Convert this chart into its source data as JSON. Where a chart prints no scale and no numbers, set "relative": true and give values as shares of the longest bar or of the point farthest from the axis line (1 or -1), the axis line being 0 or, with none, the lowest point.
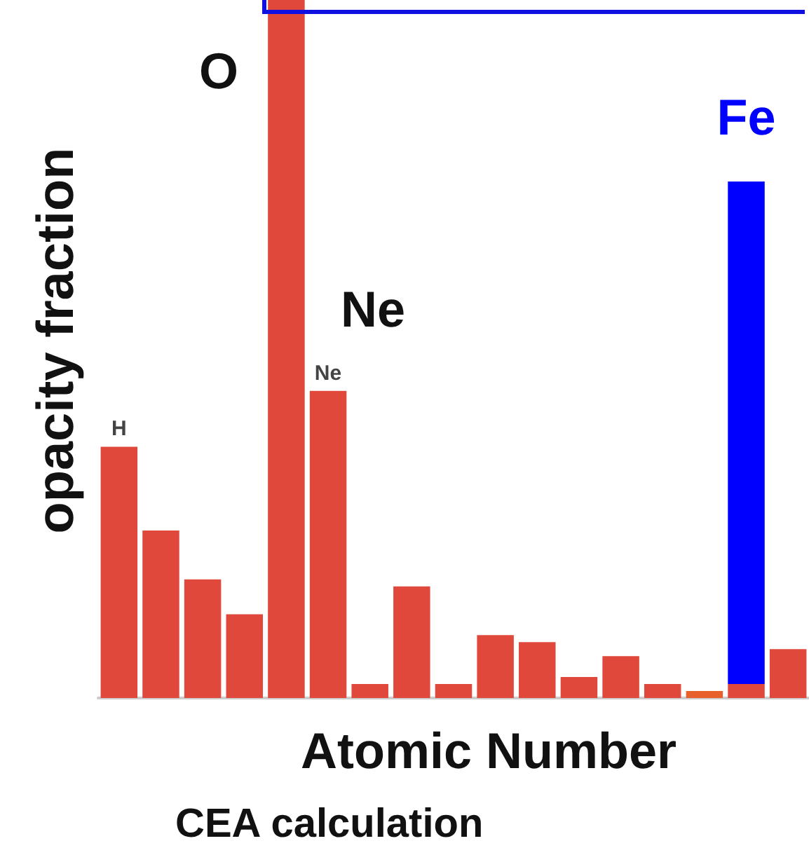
{
  "chart_data": {
    "type": "bar",
    "relative": true,
    "stacked": true,
    "xlabel": "Atomic Number",
    "ylabel": "opacity fraction",
    "categories": [
      "H",
      null,
      null,
      null,
      null,
      "Ne",
      null,
      null,
      null,
      null,
      null,
      null,
      null,
      null,
      null,
      null,
      null
    ],
    "series": [
      {
        "color": "#e0483c",
        "colors": [
          "#e0483c",
          "#e0483c",
          "#e0483c",
          "#e0483c",
          "#e0483c",
          "#e0483c",
          "#e0483c",
          "#e0483c",
          "#e0483c",
          "#e0483c",
          "#e0483c",
          "#e0483c",
          "#e0483c",
          "#e0483c",
          "#e8602c",
          "#e0483c",
          "#e0483c"
        ],
        "values": [
          0.36,
          0.24,
          0.17,
          0.12,
          1,
          0.44,
          0.02,
          0.16,
          0.02,
          0.09,
          0.08,
          0.03,
          0.06,
          0.02,
          0.01,
          0.02,
          0.07
        ]
      },
      {
        "name": "Fe",
        "color": "#0000ff",
        "values": [
          null,
          null,
          null,
          null,
          null,
          null,
          null,
          null,
          null,
          null,
          null,
          null,
          null,
          null,
          null,
          0.72,
          null
        ]
      }
    ],
    "annotations": [
      "O",
      "Ne",
      "CEA calculation"
    ],
    "legend": false,
    "tick_labels": false
  }
}
